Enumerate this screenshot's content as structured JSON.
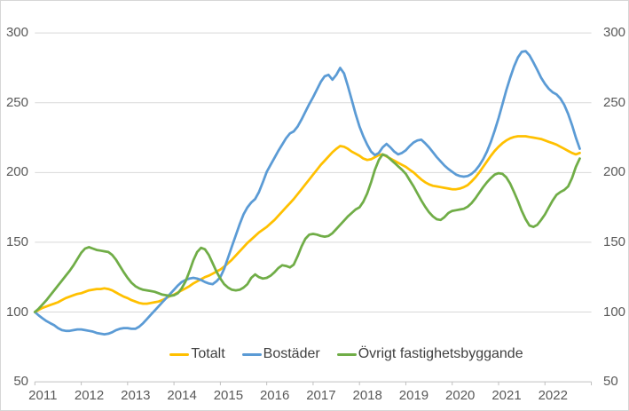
{
  "chart_data": {
    "type": "line",
    "title": "",
    "x_unit": "month",
    "x_start": "2011-01",
    "x_end": "2022-10",
    "points_per_year": 12,
    "x_tick_labels": [
      "2011",
      "2012",
      "2013",
      "2014",
      "2015",
      "2016",
      "2017",
      "2018",
      "2019",
      "2020",
      "2021",
      "2022"
    ],
    "y_ticks": [
      300,
      250,
      200,
      150,
      100,
      50
    ],
    "ylim": [
      50,
      300
    ],
    "grid": true,
    "legend_position": "bottom",
    "grid_color": "#D9D9D9",
    "axis_color": "#BFBFBF",
    "axis_label_color": "#595959",
    "legend_text_color": "#404040",
    "series": [
      {
        "name": "Totalt",
        "color": "#FFC000",
        "values": [
          100,
          101.5,
          103,
          104,
          105,
          106,
          107,
          108.5,
          110,
          111,
          112,
          113,
          113.5,
          114.5,
          115.5,
          116,
          116.5,
          116.5,
          117,
          116.5,
          115.5,
          114,
          112.5,
          111,
          110,
          108.5,
          107.5,
          106.5,
          106,
          106,
          106.5,
          107,
          107.5,
          108.5,
          110,
          111.5,
          112.5,
          114,
          115.5,
          117,
          118.5,
          120.5,
          122,
          123.5,
          125,
          126,
          127.5,
          129,
          130.5,
          132.5,
          135,
          137.5,
          140.5,
          143.5,
          146.5,
          149.5,
          152,
          154.5,
          157,
          159,
          161,
          163.5,
          166,
          169,
          172,
          175,
          178,
          181,
          184.5,
          188,
          191.5,
          195,
          198.5,
          202,
          205.5,
          208.5,
          211.5,
          214.5,
          217,
          219,
          218.5,
          217,
          215,
          213.5,
          212,
          210,
          209,
          209.5,
          211,
          212.5,
          213,
          211.5,
          210,
          208.5,
          207,
          205.5,
          204,
          202,
          200,
          197.5,
          195,
          193,
          191.5,
          190.5,
          190,
          189.5,
          189,
          188.5,
          188,
          188,
          188.5,
          189.5,
          191,
          193.5,
          196.5,
          200,
          204,
          208,
          212,
          215.5,
          218.5,
          221,
          223,
          224.5,
          225.5,
          226,
          226,
          226,
          225.5,
          225,
          224.5,
          224,
          223,
          222,
          221,
          220,
          218.5,
          217,
          215.5,
          214,
          213,
          214
        ]
      },
      {
        "name": "Bostäder",
        "color": "#5B9BD5",
        "values": [
          100,
          97.5,
          95.5,
          93.5,
          92,
          90.5,
          88.5,
          87,
          86.5,
          86.5,
          87,
          87.5,
          87.5,
          87,
          86.5,
          86,
          85,
          84.5,
          84,
          84.5,
          85.5,
          87,
          88,
          88.5,
          88.5,
          88,
          88,
          89.5,
          92,
          95,
          98,
          101,
          104,
          107,
          110,
          113,
          116,
          119,
          121.5,
          123,
          124,
          124.5,
          124,
          123,
          121.5,
          120.5,
          120,
          122,
          125,
          131,
          139,
          147,
          155,
          163,
          170,
          175,
          178.5,
          181,
          186,
          193,
          200.5,
          205.5,
          210.5,
          215.5,
          220,
          224.5,
          228,
          229.5,
          233,
          238,
          243.5,
          249,
          254,
          259.5,
          265,
          269,
          270,
          266.5,
          270,
          275,
          271,
          262,
          252,
          242,
          233,
          226,
          220,
          215,
          212.5,
          214,
          218,
          220.5,
          218,
          215,
          213,
          214,
          216,
          219,
          221.5,
          223,
          223.5,
          221,
          218,
          214.5,
          211,
          208,
          205,
          202.5,
          200.5,
          198.5,
          197.5,
          197,
          197.5,
          199,
          201.5,
          205,
          209.5,
          215,
          222,
          230,
          239,
          249,
          259,
          268,
          276,
          282.5,
          286.5,
          287,
          284,
          279,
          273.5,
          268,
          263.5,
          260,
          257.5,
          256,
          253,
          248.5,
          242,
          234,
          225,
          217
        ]
      },
      {
        "name": "Övrigt fastighetsbyggande",
        "color": "#70AD47",
        "values": [
          100,
          102.5,
          105.5,
          108.5,
          112,
          115.5,
          119,
          122.5,
          126,
          129.5,
          133.5,
          138,
          142.5,
          145.5,
          146.5,
          145.5,
          144.5,
          144,
          143.5,
          143,
          141,
          137.5,
          133,
          128.5,
          124.5,
          121,
          118.5,
          117,
          116,
          115.5,
          115,
          114.5,
          113.5,
          112.5,
          112,
          111.5,
          112,
          113.5,
          117,
          122,
          129,
          137,
          143,
          146,
          145,
          141,
          135,
          129,
          124,
          120,
          117.5,
          116,
          115.5,
          116,
          117.5,
          120,
          124.5,
          127,
          125,
          124,
          124.5,
          126,
          128.5,
          131.5,
          133.5,
          133,
          132,
          134,
          140,
          147,
          152.5,
          155.5,
          156,
          155.5,
          154.5,
          154,
          154.5,
          156.5,
          159.5,
          162.5,
          165.5,
          168.5,
          171,
          173.5,
          175,
          179,
          185,
          193,
          202,
          209,
          213,
          212,
          209.5,
          207,
          204.5,
          202,
          199,
          194.5,
          190,
          185,
          180,
          175.5,
          171.5,
          168.5,
          166.5,
          166,
          168,
          171,
          172.5,
          173,
          173.5,
          174,
          175.5,
          178,
          181.5,
          185.5,
          189.5,
          193,
          196,
          198.5,
          199.5,
          199,
          196.5,
          192,
          186,
          179.5,
          172.5,
          166.5,
          162,
          161,
          162.5,
          166,
          170,
          175,
          180,
          184,
          186,
          187.5,
          190,
          196,
          204,
          210
        ]
      }
    ]
  }
}
